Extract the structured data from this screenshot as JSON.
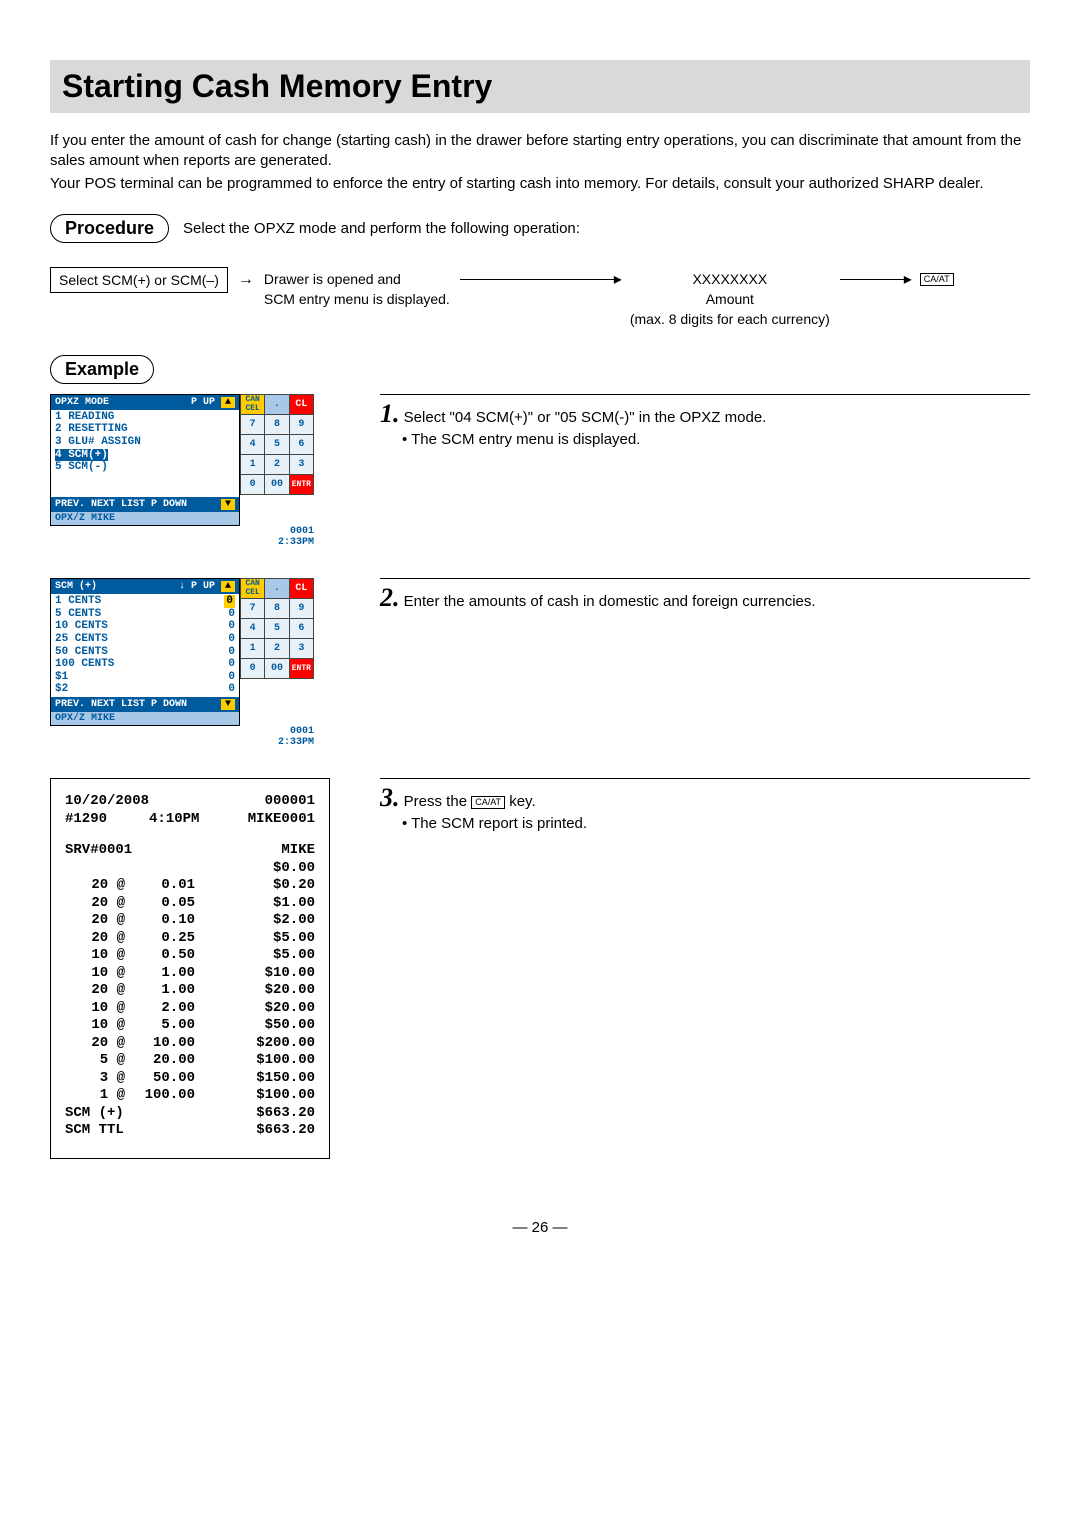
{
  "title": "Starting Cash Memory Entry",
  "intro": {
    "p1": "If you enter the amount of cash for change (starting cash) in the drawer before starting entry operations, you can discriminate that amount from the sales amount when reports are generated.",
    "p2": "Your POS terminal can be programmed to enforce the entry of starting cash into memory. For details, consult your authorized SHARP dealer."
  },
  "procedure": {
    "label": "Procedure",
    "text": "Select the OPXZ mode and perform the following operation:"
  },
  "flow": {
    "box1": "Select SCM(+) or SCM(–)",
    "step1a": "Drawer is opened and",
    "step1b": "SCM entry menu is displayed.",
    "x": "XXXXXXXX",
    "amount": "Amount",
    "max": "(max. 8 digits for each currency)",
    "key": "CA/AT"
  },
  "example_label": "Example",
  "screen1": {
    "header_left": "OPXZ MODE",
    "header_mid": "P UP",
    "rows": [
      "1 READING",
      "2 RESETTING",
      "3 GLU# ASSIGN"
    ],
    "sel": "4 SCM(+)",
    "after_sel": "5 SCM(-)",
    "footer": "PREV.  NEXT   LIST  P DOWN",
    "status_left": "OPX/Z  MIKE",
    "status_right1": "0001",
    "status_right2": "2:33PM"
  },
  "screen2": {
    "header_left": "SCM (+)",
    "header_mid": "↓  P UP",
    "rows": [
      {
        "l": "1 CENTS",
        "v": "0",
        "hl": true
      },
      {
        "l": "5 CENTS",
        "v": "0"
      },
      {
        "l": "10 CENTS",
        "v": "0"
      },
      {
        "l": "25 CENTS",
        "v": "0"
      },
      {
        "l": "50 CENTS",
        "v": "0"
      },
      {
        "l": "100 CENTS",
        "v": "0"
      },
      {
        "l": "$1",
        "v": "0"
      },
      {
        "l": "$2",
        "v": "0"
      }
    ],
    "footer": "PREV.  NEXT   LIST  P DOWN",
    "status_left": "OPX/Z  MIKE",
    "status_right1": "0001",
    "status_right2": "2:33PM"
  },
  "keypad": {
    "r0": [
      "CAN\nCEL",
      ".",
      "CL"
    ],
    "r1": [
      "7",
      "8",
      "9"
    ],
    "r2": [
      "4",
      "5",
      "6"
    ],
    "r3": [
      "1",
      "2",
      "3"
    ],
    "r4": [
      "0",
      "00",
      "ENTR"
    ]
  },
  "steps": {
    "s1n": "1.",
    "s1": "Select \"04 SCM(+)\" or \"05 SCM(-)\" in the OPXZ mode.",
    "s1b": "• The SCM entry menu is displayed.",
    "s2n": "2.",
    "s2": "Enter the amounts of cash in domestic and foreign currencies.",
    "s3n": "3.",
    "s3a": "Press the ",
    "s3key": "CA/AT",
    "s3b": " key.",
    "s3bullet": "• The SCM report is printed."
  },
  "receipt": {
    "date": "10/20/2008",
    "seq": "000001",
    "term": "#1290",
    "time": "4:10PM",
    "user": "MIKE0001",
    "srv": "SRV#0001",
    "name": "MIKE",
    "top": "$0.00",
    "lines": [
      {
        "q": "20 @",
        "d": "0.01",
        "a": "$0.20"
      },
      {
        "q": "20 @",
        "d": "0.05",
        "a": "$1.00"
      },
      {
        "q": "20 @",
        "d": "0.10",
        "a": "$2.00"
      },
      {
        "q": "20 @",
        "d": "0.25",
        "a": "$5.00"
      },
      {
        "q": "10 @",
        "d": "0.50",
        "a": "$5.00"
      },
      {
        "q": "10 @",
        "d": "1.00",
        "a": "$10.00"
      },
      {
        "q": "20 @",
        "d": "1.00",
        "a": "$20.00"
      },
      {
        "q": "10 @",
        "d": "2.00",
        "a": "$20.00"
      },
      {
        "q": "10 @",
        "d": "5.00",
        "a": "$50.00"
      },
      {
        "q": "20 @",
        "d": "10.00",
        "a": "$200.00"
      },
      {
        "q": "5 @",
        "d": "20.00",
        "a": "$100.00"
      },
      {
        "q": "3 @",
        "d": "50.00",
        "a": "$150.00"
      },
      {
        "q": "1 @",
        "d": "100.00",
        "a": "$100.00"
      }
    ],
    "scm_plus_l": "SCM (+)",
    "scm_plus_a": "$663.20",
    "scm_ttl_l": "SCM TTL",
    "scm_ttl_a": "$663.20"
  },
  "page": "— 26 —"
}
